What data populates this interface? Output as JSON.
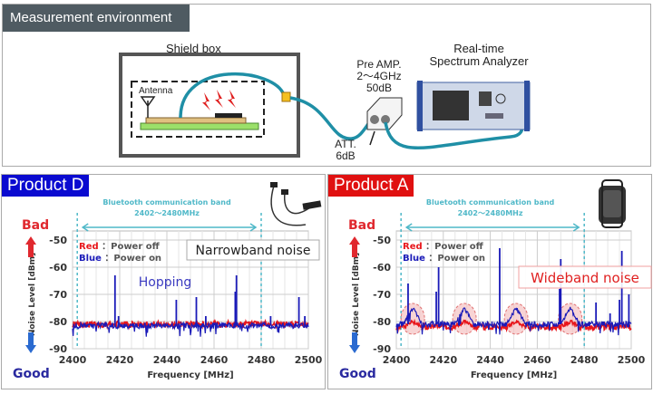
{
  "header": {
    "title": "Measurement environment"
  },
  "setup": {
    "shield_box": "Shield box",
    "antenna": "Antenna",
    "pre_amp": [
      "Pre AMP.",
      "2～4GHz",
      "50dB"
    ],
    "analyzer": [
      "Real-time",
      "Spectrum Analyzer"
    ],
    "att": [
      "ATT.",
      "6dB"
    ],
    "cable_color": "#1f8fa6"
  },
  "colors": {
    "power_off": "#e8161b",
    "power_on": "#1a1ab8",
    "band": "#4fb8c8",
    "bad": "#e0282e",
    "good": "#2a2aa0"
  },
  "chart_data": [
    {
      "type": "line",
      "title": "Product D",
      "title_bg": "#0a0ad0",
      "band_label": [
        "Bluetooth communication band",
        "2402～2480MHz"
      ],
      "band": [
        2402,
        2480
      ],
      "xlabel": "Frequency [MHz]",
      "ylabel": "Noise Level [dBm]",
      "xlim": [
        2400,
        2500
      ],
      "ylim": [
        -90,
        -50
      ],
      "xticks": [
        2400,
        2420,
        2440,
        2460,
        2480,
        2500
      ],
      "yticks": [
        -50,
        -60,
        -70,
        -80,
        -90
      ],
      "grid": true,
      "bad": "Bad",
      "good": "Good",
      "legend": [
        {
          "key": "Red",
          "text": "：Power off"
        },
        {
          "key": "Blue",
          "text": "：Power on"
        }
      ],
      "annotations": [
        "Narrowband noise",
        "Hopping"
      ],
      "series": [
        {
          "name": "Red",
          "baseline": -81,
          "spikes": []
        },
        {
          "name": "Blue",
          "baseline": -81.5,
          "spikes": [
            [
              2418,
              -63
            ],
            [
              2419.5,
              -78
            ],
            [
              2444,
              -72
            ],
            [
              2452.5,
              -71
            ],
            [
              2456.5,
              -78
            ],
            [
              2469,
              -69
            ],
            [
              2469.5,
              -63
            ],
            [
              2484,
              -78
            ],
            [
              2496,
              -71
            ],
            [
              2498.5,
              -78
            ]
          ]
        }
      ]
    },
    {
      "type": "line",
      "title": "Product A",
      "title_bg": "#e01010",
      "band_label": [
        "Bluetooth communication band",
        "2402～2480MHz"
      ],
      "band": [
        2402,
        2480
      ],
      "xlabel": "Frequency [MHz]",
      "ylabel": "Noise Level [dBm]",
      "xlim": [
        2400,
        2500
      ],
      "ylim": [
        -90,
        -50
      ],
      "xticks": [
        2400,
        2420,
        2440,
        2460,
        2480,
        2500
      ],
      "yticks": [
        -50,
        -60,
        -70,
        -80,
        -90
      ],
      "grid": true,
      "bad": "Bad",
      "good": "Good",
      "legend": [
        {
          "key": "Red",
          "text": "：Power off"
        },
        {
          "key": "Blue",
          "text": "：Power on"
        }
      ],
      "annotations": [
        "Wideband noise"
      ],
      "humps": [
        2407,
        2429,
        2451,
        2474
      ],
      "series": [
        {
          "name": "Red",
          "baseline": -82,
          "humps_peak": -80,
          "spikes": []
        },
        {
          "name": "Blue",
          "baseline": -81,
          "humps_peak": -75,
          "spikes": [
            [
              2405,
              -66
            ],
            [
              2418,
              -60
            ],
            [
              2417,
              -69
            ],
            [
              2444,
              -53
            ],
            [
              2470,
              -57
            ],
            [
              2469.5,
              -68
            ],
            [
              2485,
              -73
            ],
            [
              2491,
              -77
            ],
            [
              2495,
              -72
            ],
            [
              2496,
              -54
            ],
            [
              2499,
              -70
            ]
          ]
        }
      ]
    }
  ]
}
